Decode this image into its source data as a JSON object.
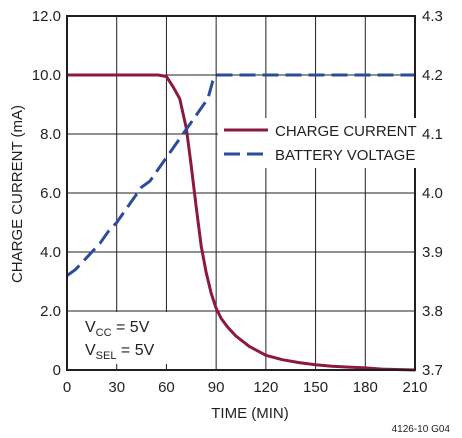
{
  "chart_data": {
    "type": "line",
    "xlabel": "TIME (MIN)",
    "ylabel": "CHARGE CURRENT (mA)",
    "xlim": [
      0,
      210
    ],
    "ylim": [
      0,
      12
    ],
    "y2lim": [
      3.7,
      4.3
    ],
    "x_ticks": [
      "0",
      "30",
      "60",
      "90",
      "120",
      "150",
      "180",
      "210"
    ],
    "y_ticks": [
      "0",
      "2.0",
      "4.0",
      "6.0",
      "8.0",
      "10.0",
      "12.0"
    ],
    "y2_ticks": [
      "3.7",
      "3.8",
      "3.9",
      "4.0",
      "4.1",
      "4.2",
      "4.3"
    ],
    "grid": true,
    "legend_position": "center-right",
    "series": [
      {
        "name": "CHARGE CURRENT",
        "axis": "left",
        "color": "#8b1a3b",
        "style": "solid",
        "x": [
          0,
          30,
          55,
          60,
          64,
          68,
          72,
          75,
          78,
          81,
          84,
          87,
          90,
          93,
          97,
          102,
          110,
          120,
          130,
          140,
          150,
          160,
          170,
          180,
          190,
          210
        ],
        "y": [
          10.0,
          10.0,
          10.0,
          9.95,
          9.6,
          9.2,
          8.2,
          6.9,
          5.5,
          4.2,
          3.3,
          2.6,
          2.1,
          1.75,
          1.45,
          1.15,
          0.8,
          0.5,
          0.35,
          0.25,
          0.18,
          0.13,
          0.1,
          0.07,
          0.03,
          0.0
        ]
      },
      {
        "name": "BATTERY VOLTAGE",
        "axis": "right",
        "color": "#2b4c9b",
        "style": "dashed",
        "x": [
          0,
          5,
          10,
          15,
          20,
          25,
          30,
          35,
          40,
          45,
          50,
          55,
          60,
          65,
          70,
          75,
          80,
          85,
          88,
          90,
          120,
          150,
          180,
          210
        ],
        "y": [
          3.86,
          3.87,
          3.885,
          3.9,
          3.915,
          3.935,
          3.95,
          3.97,
          3.99,
          4.01,
          4.02,
          4.04,
          4.06,
          4.08,
          4.1,
          4.12,
          4.14,
          4.16,
          4.19,
          4.2,
          4.2,
          4.2,
          4.2,
          4.2
        ]
      }
    ],
    "annotations": {
      "vcc": {
        "main": "V",
        "sub": "CC",
        "rest": " = 5V"
      },
      "vsel": {
        "main": "V",
        "sub": "SEL",
        "rest": " = 5V"
      }
    },
    "footnote": "4126-10 G04"
  }
}
